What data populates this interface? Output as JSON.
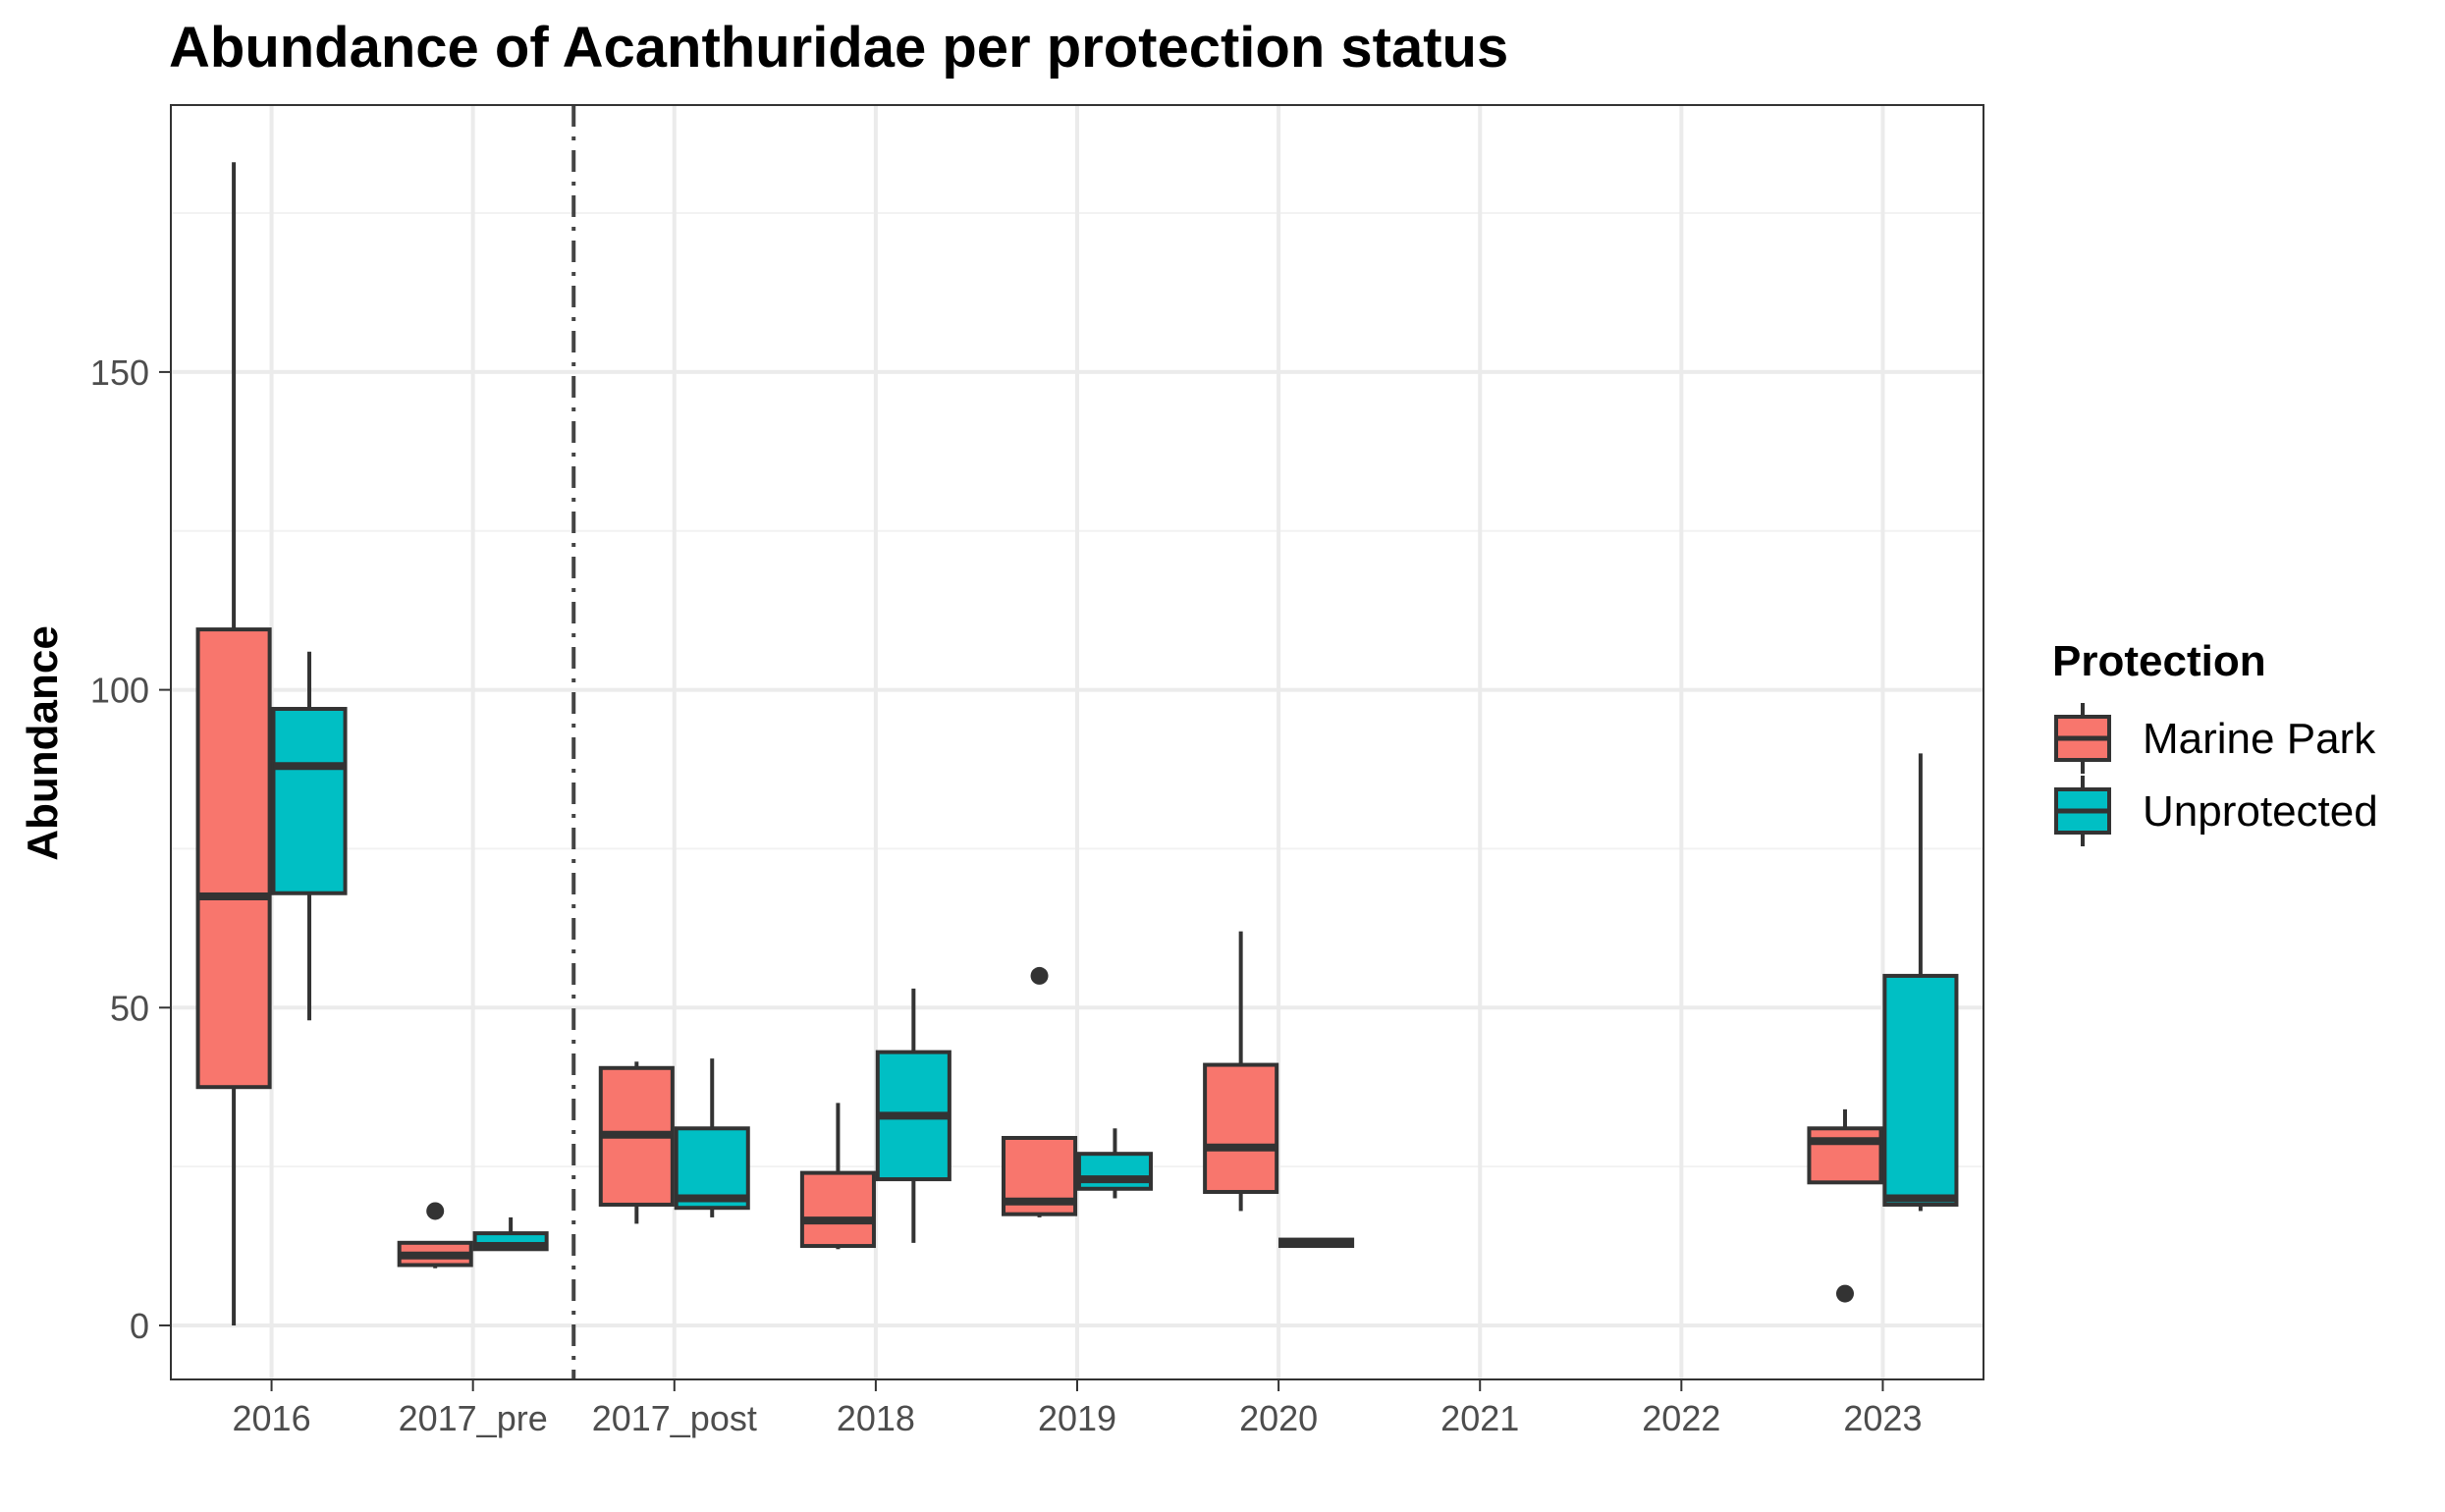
{
  "chart_data": {
    "type": "boxplot",
    "title": "Abundance of Acanthuridae per protection status",
    "xlabel": "",
    "ylabel": "Abundance",
    "ylim": [
      -8.5,
      192
    ],
    "y_ticks": [
      0,
      50,
      100,
      150
    ],
    "categories": [
      "2016",
      "2017_pre",
      "2017_post",
      "2018",
      "2019",
      "2020",
      "2021",
      "2022",
      "2023"
    ],
    "reference_line": {
      "type": "vertical",
      "style": "dashdot",
      "between": [
        "2017_pre",
        "2017_post"
      ]
    },
    "grid": true,
    "legend": {
      "title": "Protection",
      "position": "right"
    },
    "series": [
      {
        "name": "Marine Park",
        "color": "#F8766D",
        "boxes": [
          {
            "category": "2016",
            "min": 0,
            "q1": 37.5,
            "median": 67.5,
            "q3": 109.5,
            "max": 183,
            "outliers": []
          },
          {
            "category": "2017_pre",
            "min": 9,
            "q1": 9.5,
            "median": 11,
            "q3": 13,
            "max": 13,
            "outliers": [
              18
            ]
          },
          {
            "category": "2017_post",
            "min": 16,
            "q1": 19,
            "median": 30,
            "q3": 40.5,
            "max": 41.5,
            "outliers": []
          },
          {
            "category": "2018",
            "min": 12,
            "q1": 12.5,
            "median": 16.5,
            "q3": 24,
            "max": 35,
            "outliers": []
          },
          {
            "category": "2019",
            "min": 17,
            "q1": 17.5,
            "median": 19.5,
            "q3": 29.5,
            "max": 29.5,
            "outliers": [
              55
            ]
          },
          {
            "category": "2020",
            "min": 18,
            "q1": 21,
            "median": 28,
            "q3": 41,
            "max": 62,
            "outliers": []
          },
          {
            "category": "2023",
            "min": 22.5,
            "q1": 22.5,
            "median": 29,
            "q3": 31,
            "max": 34,
            "outliers": [
              5
            ]
          }
        ]
      },
      {
        "name": "Unprotected",
        "color": "#00BFC4",
        "boxes": [
          {
            "category": "2016",
            "min": 48,
            "q1": 68,
            "median": 88,
            "q3": 97,
            "max": 106,
            "outliers": []
          },
          {
            "category": "2017_pre",
            "min": 12,
            "q1": 12,
            "median": 12.5,
            "q3": 14.5,
            "max": 17,
            "outliers": []
          },
          {
            "category": "2017_post",
            "min": 17,
            "q1": 18.5,
            "median": 20,
            "q3": 31,
            "max": 42,
            "outliers": []
          },
          {
            "category": "2018",
            "min": 13,
            "q1": 23,
            "median": 33,
            "q3": 43,
            "max": 53,
            "outliers": []
          },
          {
            "category": "2019",
            "min": 20,
            "q1": 21.5,
            "median": 23,
            "q3": 27,
            "max": 31,
            "outliers": []
          },
          {
            "category": "2020",
            "min": 12.5,
            "q1": 12.5,
            "median": 13,
            "q3": 13.5,
            "max": 13.5,
            "outliers": []
          },
          {
            "category": "2023",
            "min": 18,
            "q1": 19,
            "median": 20,
            "q3": 55,
            "max": 90,
            "outliers": []
          }
        ]
      }
    ]
  }
}
